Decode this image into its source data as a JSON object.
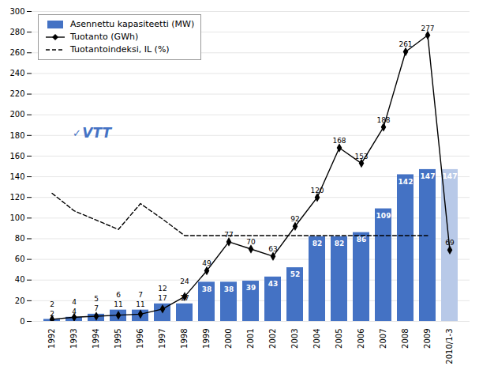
{
  "chart_data": {
    "type": "bar",
    "categories": [
      "1992",
      "1993",
      "1994",
      "1995",
      "1996",
      "1997",
      "1998",
      "1999",
      "2000",
      "2001",
      "2002",
      "2003",
      "2004",
      "2005",
      "2006",
      "2007",
      "2008",
      "2009",
      "2010/1-3"
    ],
    "series": [
      {
        "name": "Asennettu kapasiteetti (MW)",
        "type": "bar",
        "colors": [
          "#4472C4",
          "#4472C4",
          "#4472C4",
          "#4472C4",
          "#4472C4",
          "#4472C4",
          "#4472C4",
          "#4472C4",
          "#4472C4",
          "#4472C4",
          "#4472C4",
          "#4472C4",
          "#4472C4",
          "#4472C4",
          "#4472C4",
          "#4472C4",
          "#4472C4",
          "#4472C4",
          "#B8C9E8"
        ],
        "values": [
          2,
          4,
          7,
          11,
          11,
          17,
          17,
          38,
          38,
          39,
          43,
          52,
          82,
          82,
          86,
          109,
          142,
          147,
          147
        ],
        "data_labels": true
      },
      {
        "name": "Tuotanto (GWh)",
        "type": "line",
        "color": "#000000",
        "marker": "diamond",
        "values": [
          2,
          4,
          5,
          6,
          7,
          12,
          24,
          49,
          77,
          70,
          63,
          92,
          120,
          168,
          153,
          188,
          261,
          277,
          69
        ],
        "data_labels": true
      },
      {
        "name": "Tuotantoindeksi, IL (%)",
        "type": "line",
        "color": "#000000",
        "line_style": "dashed",
        "values": [
          124,
          107,
          98,
          89,
          114,
          99,
          83,
          83,
          83,
          83,
          83,
          83,
          83,
          83,
          83,
          83,
          83,
          83,
          null
        ]
      }
    ],
    "ylim": [
      0,
      300
    ],
    "yticks": [
      0,
      20,
      40,
      60,
      80,
      100,
      120,
      140,
      160,
      180,
      200,
      220,
      240,
      260,
      280,
      300
    ],
    "grid": true,
    "legend": "upper left",
    "annotations": [
      {
        "text": "✓",
        "color": "#4472C4"
      },
      {
        "text": "VTT",
        "color": "#4472C4"
      }
    ]
  }
}
